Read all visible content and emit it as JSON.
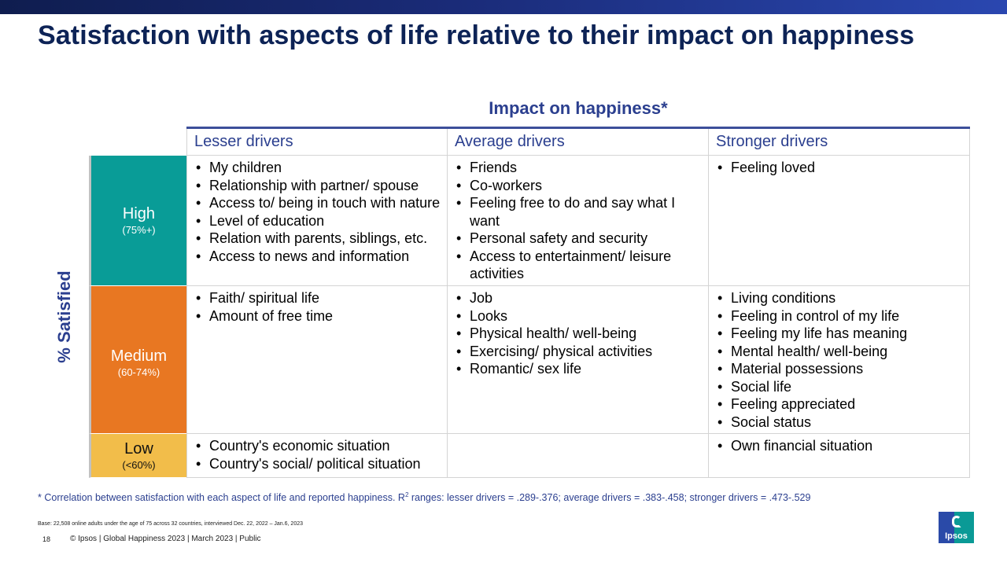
{
  "title": "Satisfaction with aspects of life relative to their impact on happiness",
  "impact_heading": "Impact on happiness*",
  "y_axis_label": "% Satisfied",
  "columns": [
    "Lesser drivers",
    "Average drivers",
    "Stronger drivers"
  ],
  "rows": [
    {
      "level": "High",
      "range": "(75%+)",
      "color": "#099c97",
      "cells": [
        [
          "My children",
          "Relationship with partner/ spouse",
          "Access to/ being in touch with nature",
          "Level of education",
          "Relation with parents, siblings, etc.",
          "Access to news and information"
        ],
        [
          "Friends",
          "Co-workers",
          "Feeling free to do and say what I want",
          "Personal safety and security",
          "Access to entertainment/ leisure activities"
        ],
        [
          "Feeling loved"
        ]
      ]
    },
    {
      "level": "Medium",
      "range": "(60-74%)",
      "color": "#e87722",
      "cells": [
        [
          "Faith/ spiritual life",
          "Amount of free time"
        ],
        [
          "Job",
          "Looks",
          "Physical health/ well-being",
          "Exercising/ physical activities",
          "Romantic/ sex life"
        ],
        [
          "Living conditions",
          "Feeling in control of my life",
          "Feeling my life has meaning",
          "Mental health/ well-being",
          "Material possessions",
          "Social life",
          "Feeling appreciated",
          "Social status"
        ]
      ]
    },
    {
      "level": "Low",
      "range": "(<60%)",
      "color": "#f2bd4a",
      "cells": [
        [
          "Country's economic situation",
          "Country's social/ political situation"
        ],
        [],
        [
          "Own financial situation"
        ]
      ]
    }
  ],
  "footnote": {
    "prefix": "* Correlation between satisfaction with each aspect of life and reported happiness. R",
    "superscript": "2",
    "suffix": " ranges: lesser drivers = .289-.376; average drivers = .383-.458; stronger drivers = .473-.529"
  },
  "base_note": "Base: 22,508 online adults under the age of 75 across 32 countries, interviewed Dec. 22, 2022 – Jan.6, 2023",
  "page_number": "18",
  "copyright": "© Ipsos | Global Happiness 2023 | March 2023 | Public",
  "logo_text": "Ipsos",
  "brand_colors": {
    "title": "#0d2356",
    "accent": "#2b3f8f",
    "logo": "#0a9a96"
  }
}
